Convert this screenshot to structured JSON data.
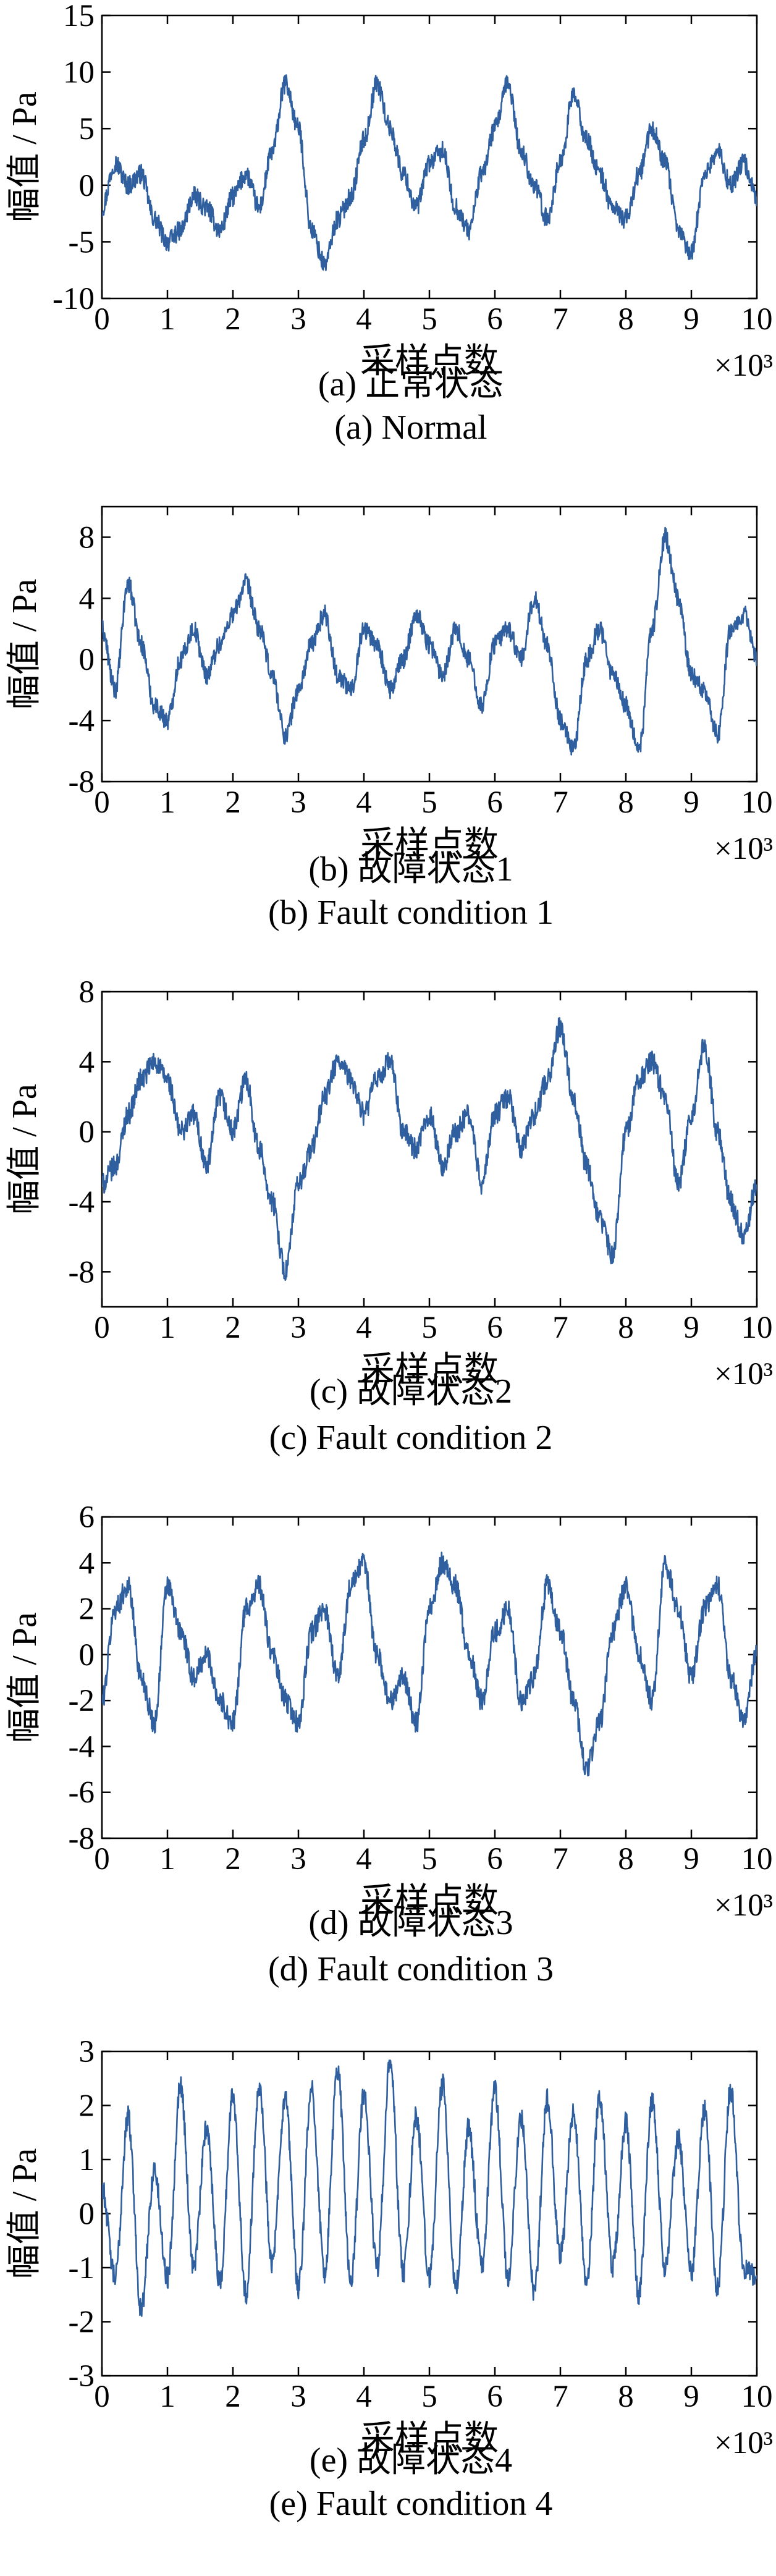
{
  "chart_data": [
    {
      "type": "line",
      "ylabel": "幅值 / Pa",
      "xlabel": "采样点数",
      "x_multiplier": "×10³",
      "caption_cn": "(a)  正常状态",
      "caption_en": "(a)  Normal",
      "xlim": [
        0,
        10
      ],
      "ylim": [
        -10,
        15
      ],
      "xticks": [
        0,
        1,
        2,
        3,
        4,
        5,
        6,
        7,
        8,
        9,
        10
      ],
      "yticks": [
        -10,
        -5,
        0,
        5,
        10,
        15
      ],
      "line_color": "#2f5f9e",
      "series": [
        {
          "x": [
            0,
            0.2,
            0.4,
            0.6,
            0.8,
            1.0,
            1.2,
            1.4,
            1.6,
            1.8,
            2.0,
            2.2,
            2.4,
            2.6,
            2.8,
            3.0,
            3.2,
            3.4,
            3.6,
            3.8,
            4.0,
            4.2,
            4.4,
            4.6,
            4.8,
            5.0,
            5.2,
            5.4,
            5.6,
            5.8,
            6.0,
            6.2,
            6.4,
            6.6,
            6.8,
            7.0,
            7.2,
            7.4,
            7.6,
            7.8,
            8.0,
            8.2,
            8.4,
            8.6,
            8.8,
            9.0,
            9.2,
            9.4,
            9.6,
            9.8,
            10.0
          ],
          "y": [
            -2,
            2,
            0,
            1,
            -3,
            -5,
            -4,
            -1,
            -2,
            -4,
            -1,
            1,
            -2,
            3,
            9,
            5,
            -4,
            -7,
            -3,
            -1,
            4,
            9,
            5,
            1,
            -2,
            2,
            3,
            -2,
            -4,
            1,
            5,
            9,
            3,
            0,
            -3,
            2,
            8,
            4,
            1,
            -2,
            -3,
            1,
            5,
            2,
            -4,
            -6,
            1,
            3,
            0,
            2,
            -1
          ]
        }
      ]
    },
    {
      "type": "line",
      "ylabel": "幅值 / Pa",
      "xlabel": "采样点数",
      "x_multiplier": "×10³",
      "caption_cn": "(b)  故障状态1",
      "caption_en": "(b)  Fault condition 1",
      "xlim": [
        0,
        10
      ],
      "ylim": [
        -8,
        10
      ],
      "xticks": [
        0,
        1,
        2,
        3,
        4,
        5,
        6,
        7,
        8,
        9,
        10
      ],
      "yticks": [
        -8,
        -4,
        0,
        4,
        8
      ],
      "line_color": "#2f5f9e",
      "series": [
        {
          "x": [
            0,
            0.2,
            0.4,
            0.6,
            0.8,
            1.0,
            1.2,
            1.4,
            1.6,
            1.8,
            2.0,
            2.2,
            2.4,
            2.6,
            2.8,
            3.0,
            3.2,
            3.4,
            3.6,
            3.8,
            4.0,
            4.2,
            4.4,
            4.6,
            4.8,
            5.0,
            5.2,
            5.4,
            5.6,
            5.8,
            6.0,
            6.2,
            6.4,
            6.6,
            6.8,
            7.0,
            7.2,
            7.4,
            7.6,
            7.8,
            8.0,
            8.2,
            8.4,
            8.6,
            8.8,
            9.0,
            9.2,
            9.4,
            9.6,
            9.8,
            10.0
          ],
          "y": [
            2,
            -2,
            5,
            1,
            -3,
            -4,
            0,
            2,
            -1,
            1,
            3,
            5,
            2,
            -1,
            -5,
            -2,
            1,
            3,
            -1,
            -2,
            2,
            1,
            -2,
            0,
            3,
            1,
            -1,
            2,
            0,
            -3,
            1,
            2,
            0,
            4,
            1,
            -4,
            -6,
            0,
            2,
            -1,
            -3,
            -6,
            2,
            8,
            4,
            -1,
            -2,
            -5,
            2,
            3,
            0
          ]
        }
      ]
    },
    {
      "type": "line",
      "ylabel": "幅值 / Pa",
      "xlabel": "采样点数",
      "x_multiplier": "×10³",
      "caption_cn": "(c)  故障状态2",
      "caption_en": "(c)  Fault condition 2",
      "xlim": [
        0,
        10
      ],
      "ylim": [
        -10,
        8
      ],
      "xticks": [
        0,
        1,
        2,
        3,
        4,
        5,
        6,
        7,
        8,
        9,
        10
      ],
      "yticks": [
        -8,
        -4,
        0,
        4,
        8
      ],
      "line_color": "#2f5f9e",
      "series": [
        {
          "x": [
            0,
            0.2,
            0.4,
            0.6,
            0.8,
            1.0,
            1.2,
            1.4,
            1.6,
            1.8,
            2.0,
            2.2,
            2.4,
            2.6,
            2.8,
            3.0,
            3.2,
            3.4,
            3.6,
            3.8,
            4.0,
            4.2,
            4.4,
            4.6,
            4.8,
            5.0,
            5.2,
            5.4,
            5.6,
            5.8,
            6.0,
            6.2,
            6.4,
            6.6,
            6.8,
            7.0,
            7.2,
            7.4,
            7.6,
            7.8,
            8.0,
            8.2,
            8.4,
            8.6,
            8.8,
            9.0,
            9.2,
            9.4,
            9.6,
            9.8,
            10.0
          ],
          "y": [
            -3,
            -2,
            1,
            3,
            4,
            3,
            0,
            1,
            -2,
            2,
            0,
            3,
            -1,
            -4,
            -8,
            -3,
            -1,
            2,
            4,
            3,
            1,
            3,
            4,
            0,
            -1,
            1,
            -2,
            0,
            1,
            -3,
            1,
            2,
            -1,
            1,
            3,
            6,
            2,
            -2,
            -5,
            -7,
            0,
            3,
            4,
            2,
            -3,
            1,
            5,
            0,
            -4,
            -6,
            -3
          ]
        }
      ]
    },
    {
      "type": "line",
      "ylabel": "幅值 / Pa",
      "xlabel": "采样点数",
      "x_multiplier": "×10³",
      "caption_cn": "(d)  故障状态3",
      "caption_en": "(d)  Fault condition 3",
      "xlim": [
        0,
        10
      ],
      "ylim": [
        -8,
        6
      ],
      "xticks": [
        0,
        1,
        2,
        3,
        4,
        5,
        6,
        7,
        8,
        9,
        10
      ],
      "yticks": [
        -8,
        -6,
        -4,
        -2,
        0,
        2,
        4,
        6
      ],
      "line_color": "#2f5f9e",
      "series": [
        {
          "x": [
            0,
            0.2,
            0.4,
            0.6,
            0.8,
            1.0,
            1.2,
            1.4,
            1.6,
            1.8,
            2.0,
            2.2,
            2.4,
            2.6,
            2.8,
            3.0,
            3.2,
            3.4,
            3.6,
            3.8,
            4.0,
            4.2,
            4.4,
            4.6,
            4.8,
            5.0,
            5.2,
            5.4,
            5.6,
            5.8,
            6.0,
            6.2,
            6.4,
            6.6,
            6.8,
            7.0,
            7.2,
            7.4,
            7.6,
            7.8,
            8.0,
            8.2,
            8.4,
            8.6,
            8.8,
            9.0,
            9.2,
            9.4,
            9.6,
            9.8,
            10.0
          ],
          "y": [
            -2,
            2,
            3,
            -1,
            -3,
            3,
            1,
            -1,
            0,
            -2,
            -3,
            2,
            3,
            0,
            -2,
            -3,
            1,
            2,
            -1,
            3,
            4,
            0,
            -2,
            -1,
            -3,
            2,
            4,
            3,
            0,
            -2,
            1,
            2,
            -2,
            -1,
            3,
            1,
            -2,
            -5,
            -3,
            1,
            3,
            0,
            -2,
            4,
            2,
            -1,
            2,
            3,
            -1,
            -3,
            0
          ]
        }
      ]
    },
    {
      "type": "line",
      "ylabel": "幅值 / Pa",
      "xlabel": "采样点数",
      "x_multiplier": "×10³",
      "caption_cn": "(e)  故障状态4",
      "caption_en": "(e)  Fault condition 4",
      "xlim": [
        0,
        10
      ],
      "ylim": [
        -3,
        3
      ],
      "xticks": [
        0,
        1,
        2,
        3,
        4,
        5,
        6,
        7,
        8,
        9,
        10
      ],
      "yticks": [
        -3,
        -2,
        -1,
        0,
        1,
        2,
        3
      ],
      "line_color": "#2f5f9e",
      "series": [
        {
          "x": [
            0,
            0.2,
            0.4,
            0.6,
            0.8,
            1.0,
            1.2,
            1.4,
            1.6,
            1.8,
            2.0,
            2.2,
            2.4,
            2.6,
            2.8,
            3.0,
            3.2,
            3.4,
            3.6,
            3.8,
            4.0,
            4.2,
            4.4,
            4.6,
            4.8,
            5.0,
            5.2,
            5.4,
            5.6,
            5.8,
            6.0,
            6.2,
            6.4,
            6.6,
            6.8,
            7.0,
            7.2,
            7.4,
            7.6,
            7.8,
            8.0,
            8.2,
            8.4,
            8.6,
            8.8,
            9.0,
            9.2,
            9.4,
            9.6,
            9.8,
            10.0
          ],
          "y": [
            0.5,
            -1.2,
            1.8,
            -1.8,
            0.8,
            -1.2,
            2.4,
            -1.0,
            1.6,
            -1.3,
            2.2,
            -1.5,
            2.4,
            -0.9,
            2.1,
            -1.4,
            2.3,
            -1.1,
            2.7,
            -1.3,
            2.2,
            -1.0,
            2.8,
            -1.1,
            1.8,
            -1.2,
            2.4,
            -1.4,
            1.6,
            -1.0,
            2.3,
            -1.2,
            1.8,
            -1.5,
            2.1,
            -0.8,
            1.9,
            -1.3,
            2.2,
            -1.0,
            1.7,
            -1.5,
            2.1,
            -1.0,
            1.4,
            -1.1,
            1.9,
            -1.4,
            2.3,
            -1.0,
            -1.2
          ]
        }
      ]
    }
  ]
}
